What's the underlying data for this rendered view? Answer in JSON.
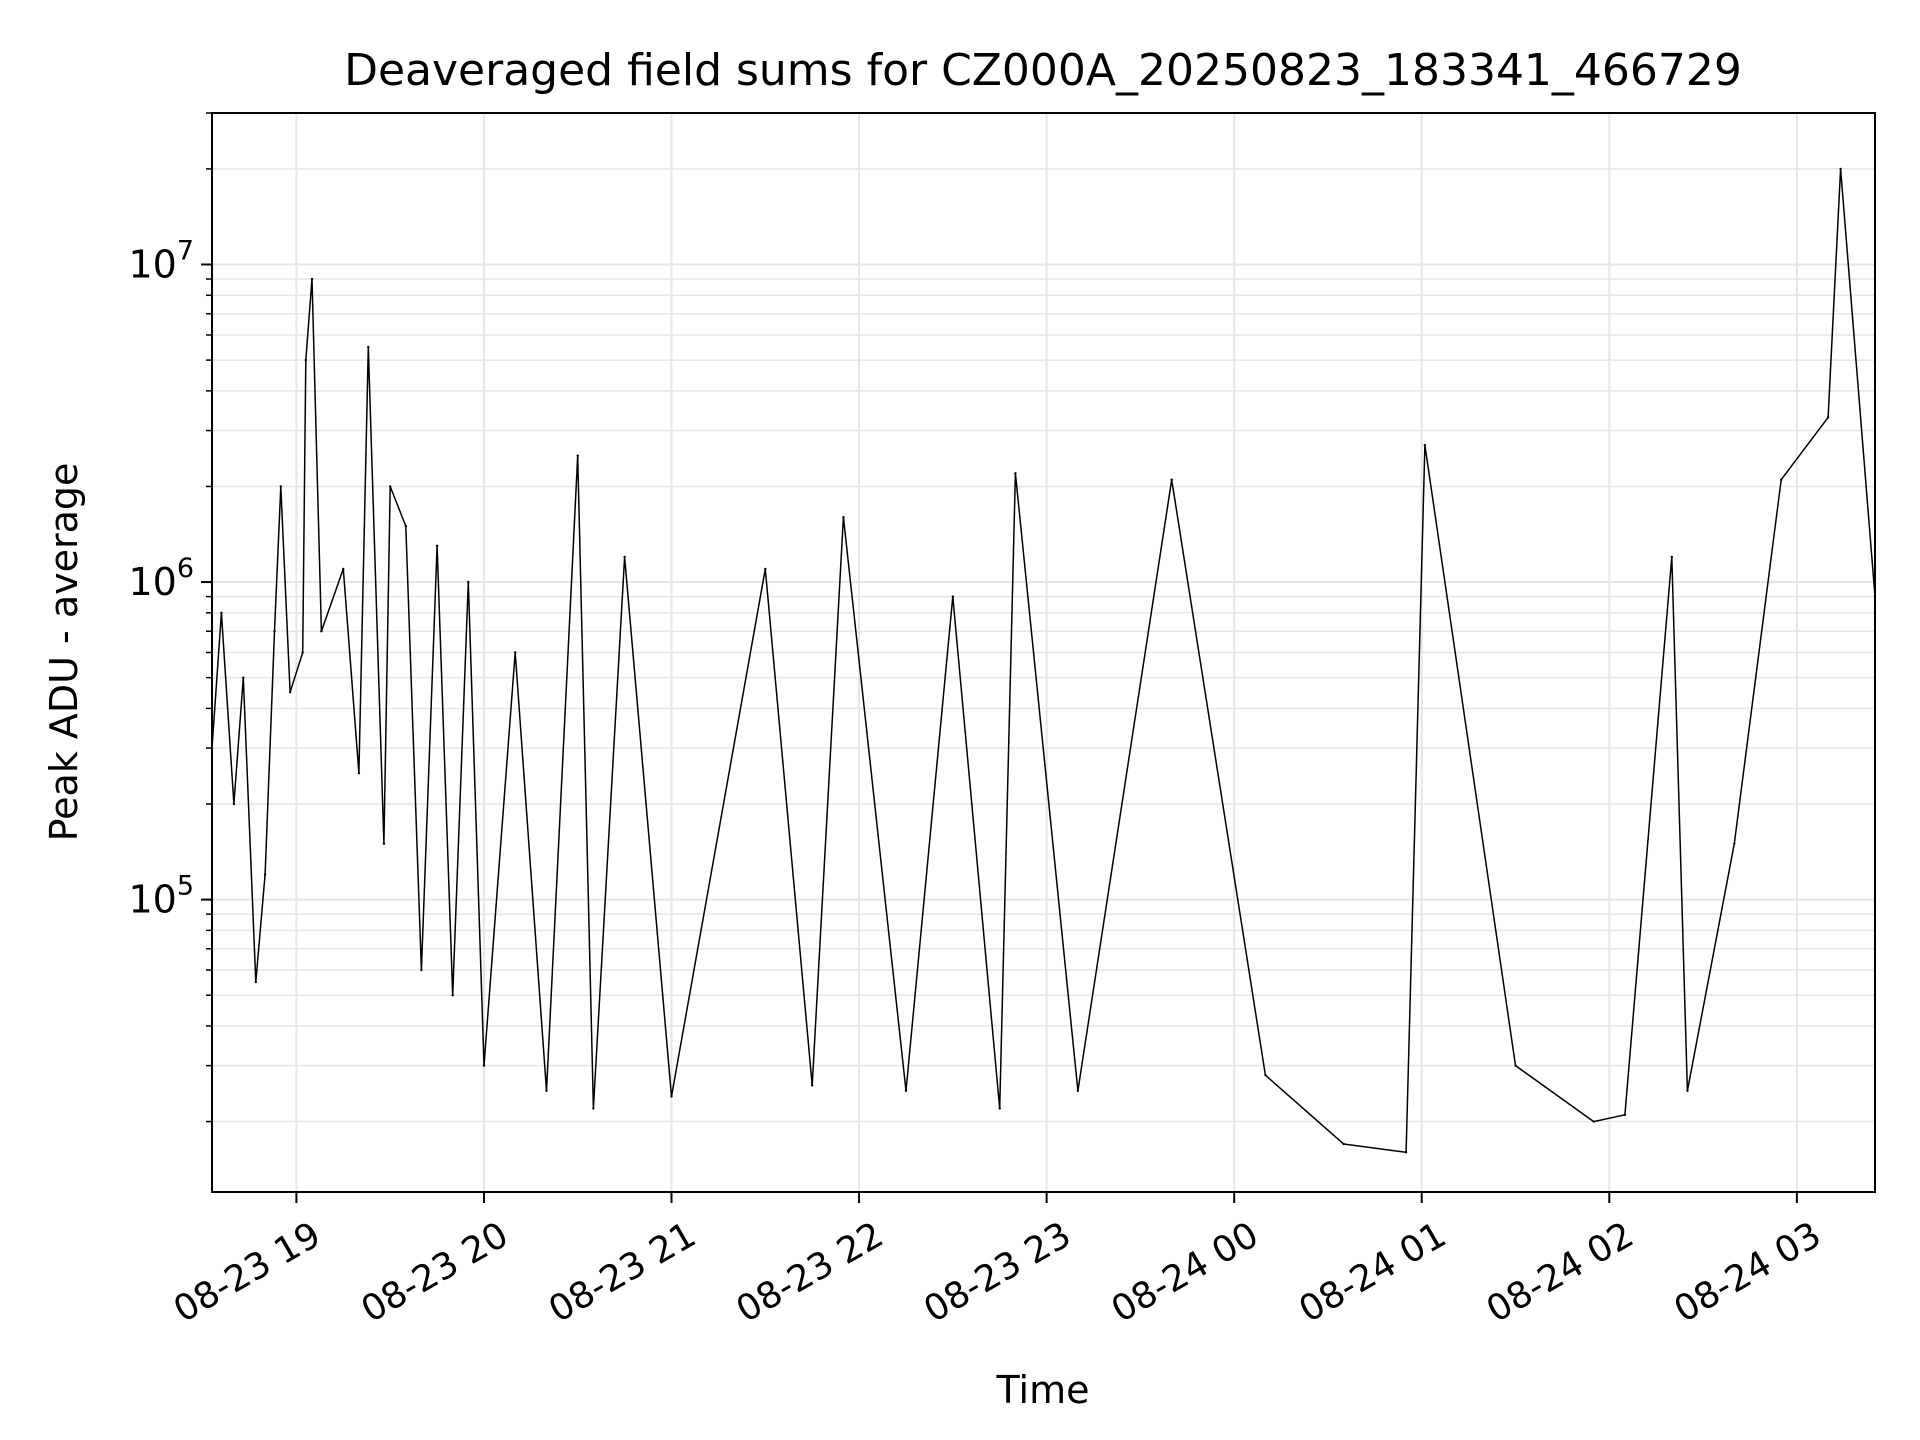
{
  "chart_data": {
    "type": "line",
    "title": "Deaveraged field sums for CZ000A_20250823_183341_466729",
    "xlabel": "Time",
    "ylabel": "Peak ADU - average",
    "x_scale": "time",
    "y_scale": "log",
    "xlim": [
      "2025-08-23 18:33",
      "2025-08-24 03:25"
    ],
    "ylim": [
      12000,
      30000000
    ],
    "x_ticks": [
      {
        "label": "08-23 19",
        "value": "2025-08-23 19:00"
      },
      {
        "label": "08-23 20",
        "value": "2025-08-23 20:00"
      },
      {
        "label": "08-23 21",
        "value": "2025-08-23 21:00"
      },
      {
        "label": "08-23 22",
        "value": "2025-08-23 22:00"
      },
      {
        "label": "08-23 23",
        "value": "2025-08-23 23:00"
      },
      {
        "label": "08-24 00",
        "value": "2025-08-24 00:00"
      },
      {
        "label": "08-24 01",
        "value": "2025-08-24 01:00"
      },
      {
        "label": "08-24 02",
        "value": "2025-08-24 02:00"
      },
      {
        "label": "08-24 03",
        "value": "2025-08-24 03:00"
      }
    ],
    "y_ticks": [
      {
        "base": "10",
        "exp": "5",
        "value": 100000
      },
      {
        "base": "10",
        "exp": "6",
        "value": 1000000
      },
      {
        "base": "10",
        "exp": "7",
        "value": 10000000
      }
    ],
    "grid": true,
    "line_color": "#000000",
    "grid_color": "#e6e6e6",
    "series": [
      {
        "points": [
          [
            "2025-08-23 18:33",
            300000
          ],
          [
            "2025-08-23 18:36",
            800000
          ],
          [
            "2025-08-23 18:40",
            200000
          ],
          [
            "2025-08-23 18:43",
            500000
          ],
          [
            "2025-08-23 18:47",
            55000
          ],
          [
            "2025-08-23 18:50",
            120000
          ],
          [
            "2025-08-23 18:53",
            700000
          ],
          [
            "2025-08-23 18:55",
            2000000
          ],
          [
            "2025-08-23 18:58",
            450000
          ],
          [
            "2025-08-23 19:02",
            600000
          ],
          [
            "2025-08-23 19:03",
            5000000
          ],
          [
            "2025-08-23 19:05",
            9000000
          ],
          [
            "2025-08-23 19:08",
            700000
          ],
          [
            "2025-08-23 19:15",
            1100000
          ],
          [
            "2025-08-23 19:20",
            250000
          ],
          [
            "2025-08-23 19:23",
            5500000
          ],
          [
            "2025-08-23 19:28",
            150000
          ],
          [
            "2025-08-23 19:30",
            2000000
          ],
          [
            "2025-08-23 19:35",
            1500000
          ],
          [
            "2025-08-23 19:40",
            60000
          ],
          [
            "2025-08-23 19:45",
            1300000
          ],
          [
            "2025-08-23 19:50",
            50000
          ],
          [
            "2025-08-23 19:55",
            1000000
          ],
          [
            "2025-08-23 20:00",
            30000
          ],
          [
            "2025-08-23 20:10",
            600000
          ],
          [
            "2025-08-23 20:20",
            25000
          ],
          [
            "2025-08-23 20:30",
            2500000
          ],
          [
            "2025-08-23 20:35",
            22000
          ],
          [
            "2025-08-23 20:45",
            1200000
          ],
          [
            "2025-08-23 21:00",
            24000
          ],
          [
            "2025-08-23 21:30",
            1100000
          ],
          [
            "2025-08-23 21:45",
            26000
          ],
          [
            "2025-08-23 21:55",
            1600000
          ],
          [
            "2025-08-23 22:15",
            25000
          ],
          [
            "2025-08-23 22:30",
            900000
          ],
          [
            "2025-08-23 22:45",
            22000
          ],
          [
            "2025-08-23 22:50",
            2200000
          ],
          [
            "2025-08-23 23:10",
            25000
          ],
          [
            "2025-08-23 23:40",
            2100000
          ],
          [
            "2025-08-24 00:10",
            28000
          ],
          [
            "2025-08-24 00:35",
            17000
          ],
          [
            "2025-08-24 00:55",
            16000
          ],
          [
            "2025-08-24 01:01",
            2700000
          ],
          [
            "2025-08-24 01:30",
            30000
          ],
          [
            "2025-08-24 01:55",
            20000
          ],
          [
            "2025-08-24 02:05",
            21000
          ],
          [
            "2025-08-24 02:20",
            1200000
          ],
          [
            "2025-08-24 02:25",
            25000
          ],
          [
            "2025-08-24 02:40",
            150000
          ],
          [
            "2025-08-24 02:55",
            2100000
          ],
          [
            "2025-08-24 03:10",
            3300000
          ],
          [
            "2025-08-24 03:14",
            20000000
          ],
          [
            "2025-08-24 03:25",
            900000
          ]
        ]
      }
    ]
  }
}
